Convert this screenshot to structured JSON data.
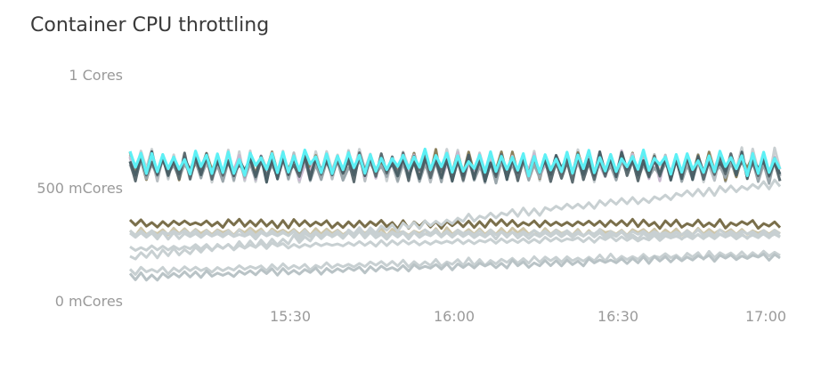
{
  "chart_data": {
    "type": "line",
    "title": "Container CPU throttling",
    "yticks": [
      "1 Cores",
      "500 mCores",
      "0 mCores"
    ],
    "ytick_values": [
      1000,
      500,
      0
    ],
    "xticks": [
      "15:30",
      "16:00",
      "16:30",
      "17:00"
    ],
    "ylim": [
      0,
      1000
    ],
    "grid": false,
    "legend": "none",
    "n_points": 120,
    "series": [
      {
        "color": "#c9cfd1",
        "base": 600,
        "amp": 70
      },
      {
        "color": "#b7bec2",
        "base": 590,
        "amp": 60
      },
      {
        "color": "#8a7f5a",
        "base": 600,
        "amp": 55
      },
      {
        "color": "#c8b9cf",
        "base": 595,
        "amp": 55
      },
      {
        "color": "#9aa6ab",
        "base": 580,
        "amp": 50
      },
      {
        "color": "#5c6b70",
        "base": 590,
        "amp": 55
      },
      {
        "color": "#4a5f66",
        "base": 595,
        "amp": 55
      },
      {
        "color": "#5df0f5",
        "base": 610,
        "amp": 50
      },
      {
        "color": "#7a6f4b",
        "base": 340,
        "amp": 18
      },
      {
        "color": "#cfc6a8",
        "base": 305,
        "amp": 15
      },
      {
        "color": "#c8d0d2",
        "base": 300,
        "amp": 12
      },
      {
        "color": "#c8d0d2",
        "base": 290,
        "amp": 14
      },
      {
        "color": "#c8d0d2",
        "start": 190,
        "end": 520,
        "amp": 18
      },
      {
        "color": "#c8d0d2",
        "start": 130,
        "end": 210,
        "amp": 15
      },
      {
        "color": "#c8d0d2",
        "start": 230,
        "end": 290,
        "amp": 12
      },
      {
        "color": "#b9c3c6",
        "start": 105,
        "end": 200,
        "amp": 16
      }
    ]
  }
}
